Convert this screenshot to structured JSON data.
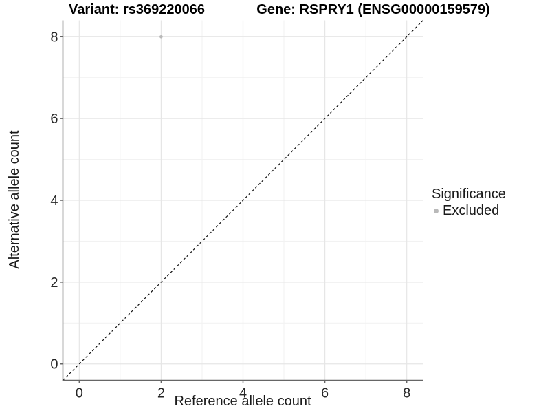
{
  "titles": {
    "variant": "Variant: rs369220066",
    "gene": "Gene: RSPRY1 (ENSG00000159579)"
  },
  "axes": {
    "x_label": "Reference allele count",
    "y_label": "Alternative allele count"
  },
  "legend": {
    "title": "Significance",
    "items": [
      {
        "label": "Excluded",
        "color": "#b9b9b9"
      }
    ]
  },
  "chart_data": {
    "type": "scatter",
    "title_left": "Variant: rs369220066",
    "title_right": "Gene: RSPRY1 (ENSG00000159579)",
    "xlabel": "Reference allele count",
    "ylabel": "Alternative allele count",
    "xlim": [
      -0.4,
      8.4
    ],
    "ylim": [
      -0.4,
      8.4
    ],
    "x_ticks": [
      0,
      2,
      4,
      6,
      8
    ],
    "y_ticks": [
      0,
      2,
      4,
      6,
      8
    ],
    "x_minor_ticks": [
      1,
      3,
      5,
      7
    ],
    "y_minor_ticks": [
      1,
      3,
      5,
      7
    ],
    "grid": true,
    "legend_position": "right",
    "series": [
      {
        "name": "Excluded",
        "color": "#b9b9b9",
        "points": [
          {
            "x": 2,
            "y": 8
          }
        ]
      }
    ],
    "reference_line": {
      "type": "identity",
      "style": "dashed",
      "from": [
        -0.4,
        -0.4
      ],
      "to": [
        8.4,
        8.4
      ]
    },
    "colors": {
      "point": "#b9b9b9",
      "grid_major": "#e6e6e6",
      "grid_minor": "#f1f1f1",
      "axis_line": "#666666",
      "tick_mark": "#666666",
      "tick_text": "#262626",
      "diagonal": "#111111",
      "background": "#ffffff"
    }
  }
}
